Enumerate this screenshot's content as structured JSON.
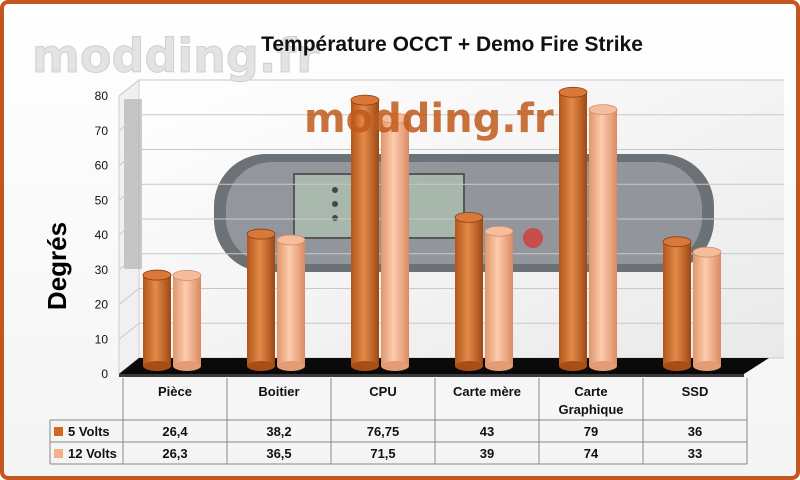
{
  "watermark": "modding.fr",
  "chart_data": {
    "type": "bar",
    "title": "Température OCCT + Demo Fire Strike",
    "ylabel": "Degrés",
    "xlabel": "",
    "ylim": [
      0,
      80
    ],
    "yticks": [
      0,
      10,
      20,
      30,
      40,
      50,
      60,
      70,
      80
    ],
    "grid": true,
    "legend": "data-table",
    "categories": [
      [
        "Pièce"
      ],
      [
        "Boitier"
      ],
      [
        "CPU"
      ],
      [
        "Carte mère"
      ],
      [
        "Carte",
        "Graphique"
      ],
      [
        "SSD"
      ]
    ],
    "series": [
      {
        "name": "5 Volts",
        "values": [
          26.4,
          38.2,
          76.75,
          43,
          79,
          36
        ],
        "labels": [
          "26,4",
          "38,2",
          "76,75",
          "43",
          "79",
          "36"
        ],
        "color": "#d2691e"
      },
      {
        "name": "12 Volts",
        "values": [
          26.3,
          36.5,
          71.5,
          39,
          74,
          33
        ],
        "labels": [
          "26,3",
          "36,5",
          "71,5",
          "39",
          "74",
          "33"
        ],
        "color": "#f4b08a"
      }
    ]
  }
}
